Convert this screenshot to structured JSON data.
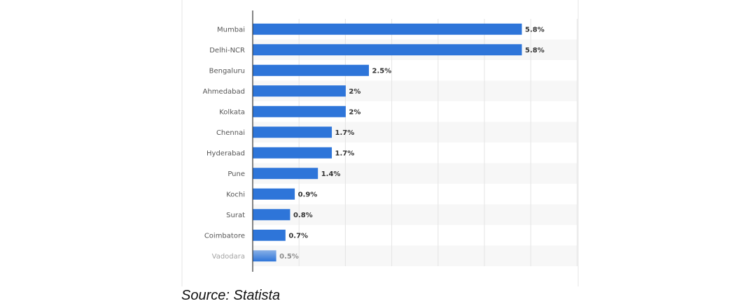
{
  "chart_data": {
    "type": "bar",
    "orientation": "horizontal",
    "title": "",
    "xlabel": "",
    "ylabel": "",
    "categories": [
      "Mumbai",
      "Delhi-NCR",
      "Bengaluru",
      "Ahmedabad",
      "Kolkata",
      "Chennai",
      "Hyderabad",
      "Pune",
      "Kochi",
      "Surat",
      "Coimbatore",
      "Vadodara"
    ],
    "values": [
      5.8,
      5.8,
      2.5,
      2.0,
      2.0,
      1.7,
      1.7,
      1.4,
      0.9,
      0.8,
      0.7,
      0.5
    ],
    "value_labels": [
      "5.8%",
      "5.8%",
      "2.5%",
      "2%",
      "2%",
      "1.7%",
      "1.7%",
      "1.4%",
      "0.9%",
      "0.8%",
      "0.7%",
      "0.5%"
    ],
    "xlim": [
      0,
      7
    ],
    "grid": true,
    "legend": "none",
    "bar_color": "#2e75d9"
  },
  "caption": "Source: Statista"
}
